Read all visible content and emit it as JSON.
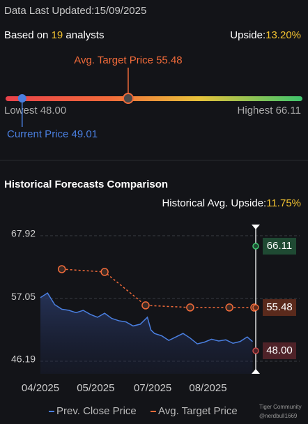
{
  "header": {
    "updated_label": "Data Last Updated:",
    "updated_date": "15/09/2025"
  },
  "summary": {
    "based_on_prefix": "Based on",
    "analysts": 19,
    "based_on_suffix": "analysts",
    "upside_label": "Upside:",
    "upside": "13.20%"
  },
  "range": {
    "avg_label": "Avg. Target Price",
    "avg": 55.48,
    "lowest_label": "Lowest",
    "lowest": {
      "value": 48,
      "label": "48.00"
    },
    "highest_label": "Highest",
    "highest": 66.11,
    "current_label": "Current Price",
    "current": 49.01
  },
  "chart_data": {
    "type": "line",
    "title": "Historical Forecasts Comparison",
    "upside_label": "Historical Avg. Upside:",
    "upside": "11.75%",
    "xlim": [
      0,
      120
    ],
    "xticks": [
      {
        "value": 0,
        "label": "04/2025"
      },
      {
        "value": 31,
        "label": "05/2025"
      },
      {
        "value": 63,
        "label": "07/2025"
      },
      {
        "value": 94,
        "label": "08/2025"
      }
    ],
    "ylim": [
      44.02,
      69.85
    ],
    "yticks": [
      46.19,
      57.05,
      67.92
    ],
    "grid": true,
    "series": [
      {
        "name": "Prev. Close Price",
        "color": "#4a7fe0",
        "x": [
          0,
          4,
          8,
          12,
          16,
          20,
          24,
          28,
          32,
          36,
          40,
          44,
          48,
          52,
          56,
          60,
          62,
          64,
          68,
          72,
          76,
          80,
          84,
          88,
          92,
          96,
          100,
          104,
          108,
          112,
          116,
          119
        ],
        "values": [
          57.2,
          58.0,
          56.0,
          55.2,
          55.0,
          54.6,
          55.0,
          54.3,
          53.8,
          54.5,
          53.6,
          53.2,
          53.0,
          52.3,
          52.6,
          53.8,
          51.6,
          51.0,
          50.6,
          49.8,
          50.4,
          51.0,
          50.2,
          49.2,
          49.5,
          50.0,
          49.7,
          49.9,
          49.3,
          49.6,
          50.4,
          49.6
        ]
      },
      {
        "name": "Avg. Target Price",
        "color": "#f26b3a",
        "x": [
          12,
          36,
          59,
          84,
          106,
          120
        ],
        "values": [
          62.13,
          61.65,
          55.86,
          55.5,
          55.5,
          55.48
        ]
      }
    ]
  },
  "watermark": {
    "brand": "Tiger Community",
    "user": "@nerdbull1669"
  }
}
